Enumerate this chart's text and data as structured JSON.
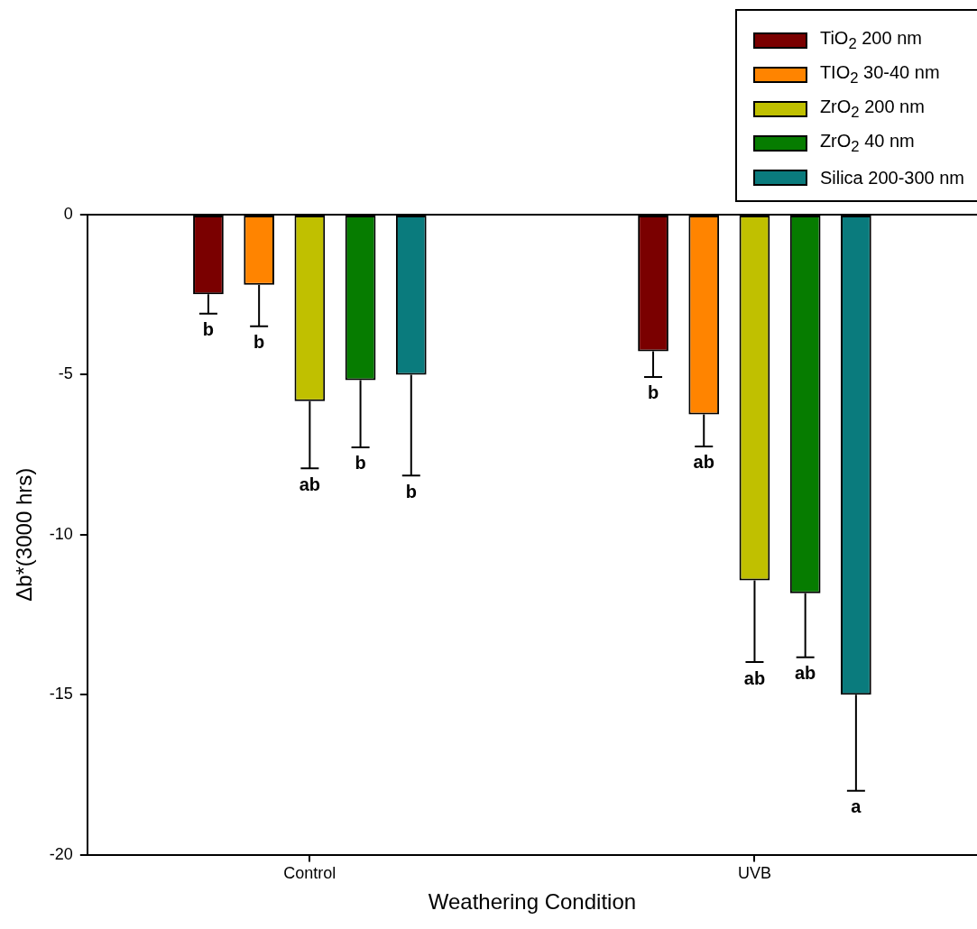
{
  "chart_data": {
    "type": "bar",
    "xlabel": "Weathering Condition",
    "ylabel": "Δb*(3000 hrs)",
    "categories": [
      "Control",
      "UVB"
    ],
    "series": [
      {
        "name": "TiO$_{2}$ 200 nm",
        "color": "#7a0000",
        "values": [
          -2.49,
          -4.27
        ],
        "errors": [
          [
            -3.09,
            -2.49
          ],
          [
            -5.07,
            -4.27
          ]
        ]
      },
      {
        "name": "TIO$_{2}$ 30-40 nm",
        "color": "#ff8400",
        "values": [
          -2.19,
          -6.24
        ],
        "errors": [
          [
            -3.49,
            -2.19
          ],
          [
            -7.24,
            -6.24
          ]
        ]
      },
      {
        "name": "ZrO$_{2}$ 200 nm",
        "color": "#c0c000",
        "values": [
          -5.83,
          -11.43
        ],
        "errors": [
          [
            -7.93,
            -5.83
          ],
          [
            -13.98,
            -11.43
          ]
        ]
      },
      {
        "name": "ZrO$_{2}$ 40 nm",
        "color": "#067c00",
        "values": [
          -5.17,
          -11.83
        ],
        "errors": [
          [
            -7.27,
            -5.17
          ],
          [
            -13.83,
            -11.83
          ]
        ]
      },
      {
        "name": "Silica 200-300 nm",
        "color": "#0a7b7d",
        "values": [
          -5.0,
          -15.0
        ],
        "errors": [
          [
            -8.15,
            -5.0
          ],
          [
            -18.0,
            -15.0
          ]
        ]
      }
    ],
    "annotations": [
      "b",
      "b",
      "ab",
      "b",
      "b",
      "b",
      "ab",
      "ab",
      "ab",
      "a"
    ],
    "ylim": [
      -20,
      0
    ],
    "yticks": [
      0,
      -5,
      -10,
      -15,
      -20
    ],
    "legend": "top right"
  }
}
